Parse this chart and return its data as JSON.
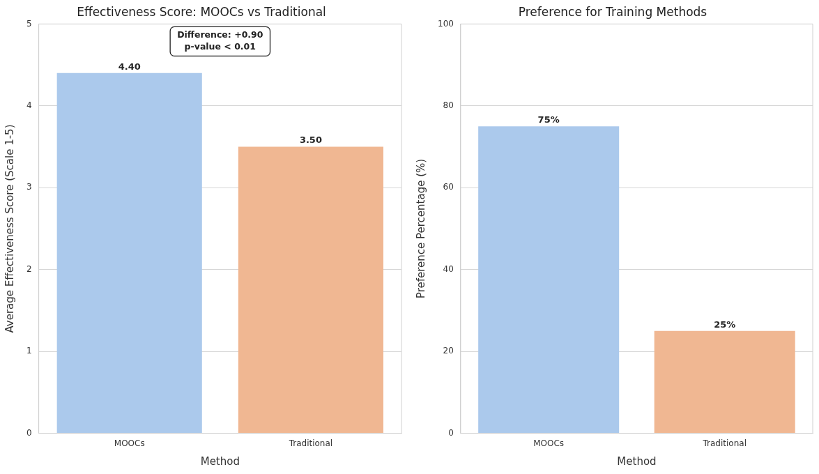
{
  "chart_data": [
    {
      "type": "bar",
      "title": "Effectiveness Score: MOOCs vs Traditional",
      "xlabel": "Method",
      "ylabel": "Average Effectiveness Score (Scale 1-5)",
      "categories": [
        "MOOCs",
        "Traditional"
      ],
      "values": [
        4.4,
        3.5
      ],
      "colors": [
        "#abc9ec",
        "#f0b792"
      ],
      "value_labels": [
        "4.40",
        "3.50"
      ],
      "ylim": [
        0,
        5
      ],
      "yticks": [
        0,
        1,
        2,
        3,
        4,
        5
      ],
      "grid": "y",
      "annotations": [
        "Difference: +0.90\np-value < 0.01"
      ]
    },
    {
      "type": "bar",
      "title": "Preference for Training Methods",
      "xlabel": "Method",
      "ylabel": "Preference Percentage (%)",
      "categories": [
        "MOOCs",
        "Traditional"
      ],
      "values": [
        75,
        25
      ],
      "colors": [
        "#abc9ec",
        "#f0b792"
      ],
      "value_labels": [
        "75%",
        "25%"
      ],
      "ylim": [
        0,
        100
      ],
      "yticks": [
        0,
        20,
        40,
        60,
        80,
        100
      ],
      "grid": "y"
    }
  ]
}
